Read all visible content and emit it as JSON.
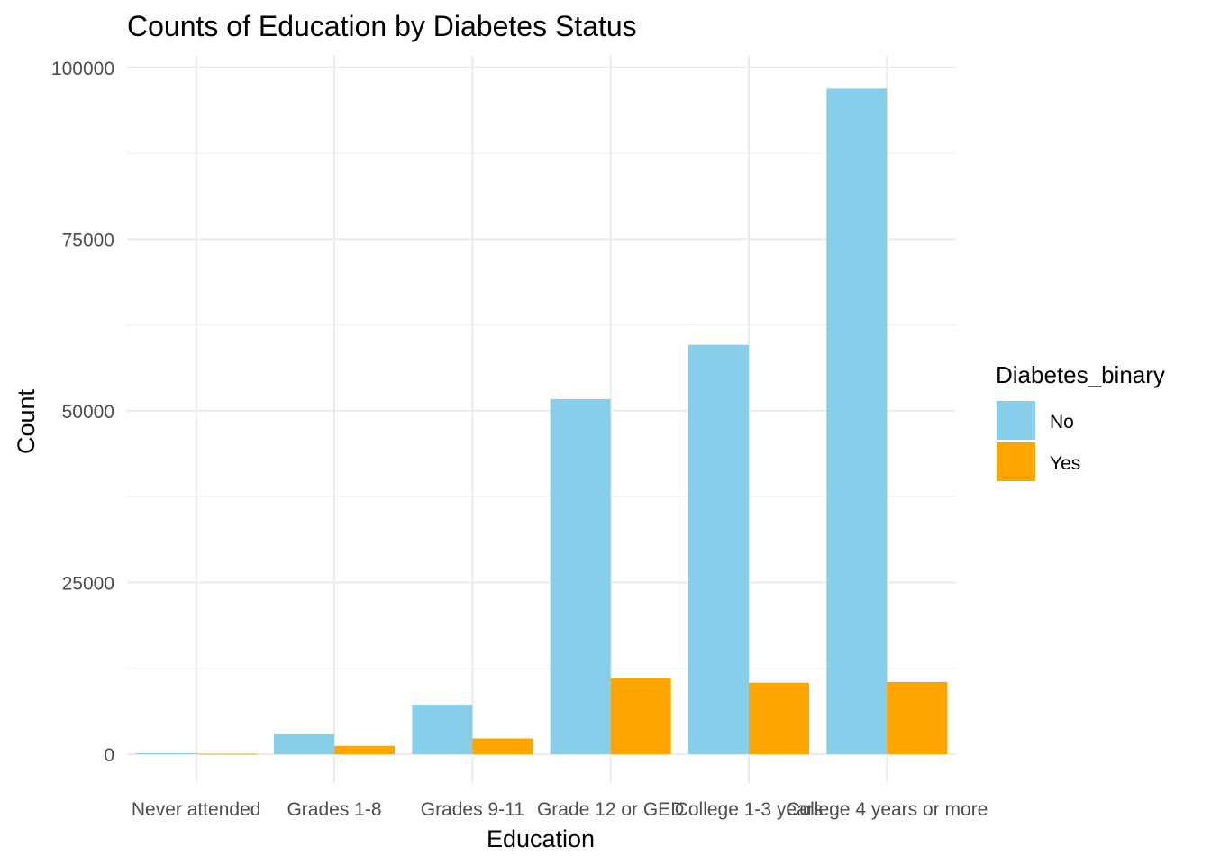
{
  "chart_data": {
    "type": "bar",
    "title": "Counts of Education by Diabetes Status",
    "xlabel": "Education",
    "ylabel": "Count",
    "categories": [
      "Never attended",
      "Grades 1-8",
      "Grades 9-11",
      "Grade 12 or GED",
      "College 1-3 years",
      "College 4 years or more"
    ],
    "series": [
      {
        "name": "No",
        "color": "#87CEEB",
        "values": [
          150,
          2900,
          7200,
          51700,
          59600,
          96900
        ]
      },
      {
        "name": "Yes",
        "color": "#FFA500",
        "values": [
          50,
          1200,
          2300,
          11100,
          10400,
          10500
        ]
      }
    ],
    "ylim": [
      0,
      100000
    ],
    "yticks": [
      0,
      25000,
      50000,
      75000,
      100000
    ],
    "ytick_labels": [
      "0",
      "25000",
      "50000",
      "75000",
      "100000"
    ],
    "grid": true,
    "legend": {
      "title": "Diabetes_binary",
      "position": "right"
    }
  }
}
